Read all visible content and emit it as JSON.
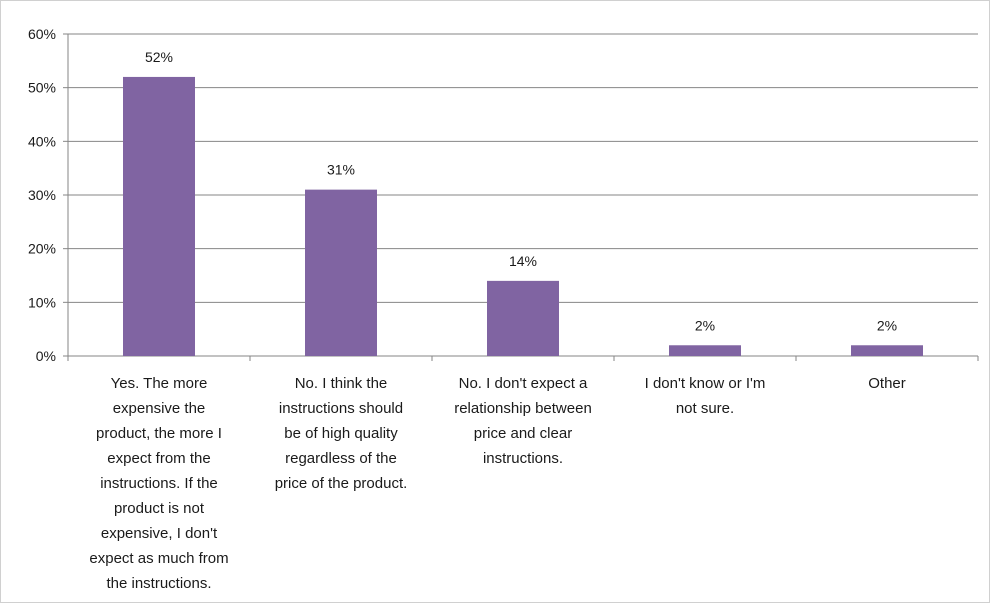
{
  "chart_data": {
    "type": "bar",
    "title": "",
    "xlabel": "",
    "ylabel": "",
    "ylim": [
      0,
      60
    ],
    "yticks": [
      "0%",
      "10%",
      "20%",
      "30%",
      "40%",
      "50%",
      "60%"
    ],
    "grid": true,
    "legend": "none",
    "categories": [
      [
        "Yes. The more",
        "expensive the",
        "product, the more I",
        "expect from the",
        "instructions. If the",
        "product is not",
        "expensive, I don't",
        "expect as much from",
        "the instructions."
      ],
      [
        "No. I think the",
        "instructions should",
        "be of high quality",
        "regardless of the",
        "price of the product."
      ],
      [
        "No. I don't expect a",
        "relationship between",
        "price and clear",
        "instructions."
      ],
      [
        "I don't know or I'm",
        "not sure."
      ],
      [
        "Other"
      ]
    ],
    "values": [
      52,
      31,
      14,
      2,
      2
    ],
    "data_labels": [
      "52%",
      "31%",
      "14%",
      "2%",
      "2%"
    ],
    "colors": {
      "bar": "#8064A2",
      "grid": "#868686",
      "axis": "#868686"
    }
  }
}
